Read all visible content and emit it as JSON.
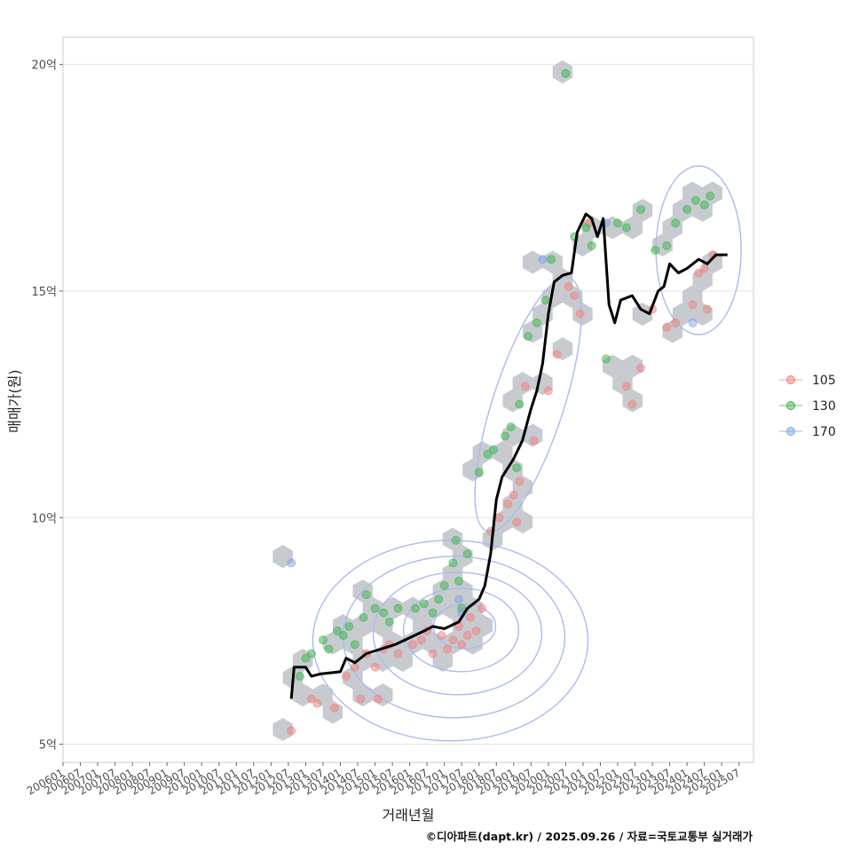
{
  "chart_data": {
    "type": "scatter",
    "xlabel": "거래년월",
    "ylabel": "매매가(원)",
    "caption": "©디아파트(dapt.kr) / 2025.09.26 / 자료=국토교통부 실거래가",
    "x_range": [
      "2006-01",
      "2025-12"
    ],
    "ylim": [
      4.6,
      20.6
    ],
    "y_ticks": [
      {
        "value": 5,
        "label": "5억"
      },
      {
        "value": 10,
        "label": "10억"
      },
      {
        "value": 15,
        "label": "15억"
      },
      {
        "value": 20,
        "label": "20억"
      }
    ],
    "x_ticks": [
      "200601",
      "200607",
      "200701",
      "200707",
      "200801",
      "200807",
      "200901",
      "200907",
      "201001",
      "201007",
      "201101",
      "201107",
      "201201",
      "201207",
      "201301",
      "201307",
      "201401",
      "201407",
      "201501",
      "201507",
      "201601",
      "201607",
      "201701",
      "201707",
      "201801",
      "201807",
      "201901",
      "201907",
      "202001",
      "202007",
      "202101",
      "202107",
      "202201",
      "202207",
      "202301",
      "202307",
      "202401",
      "202407",
      "202501",
      "202507"
    ],
    "legend": {
      "position": "right"
    },
    "grid": true,
    "colors": {
      "105": "#f08080",
      "130": "#3cb44b",
      "170": "#7fa3e6",
      "hex": "#b9bec4",
      "contour": "#aabbee",
      "trend": "#000000"
    },
    "series": [
      {
        "name": "105",
        "points": [
          [
            "2012-08",
            5.3
          ],
          [
            "2013-03",
            6.0
          ],
          [
            "2013-05",
            5.9
          ],
          [
            "2013-11",
            5.8
          ],
          [
            "2014-03",
            6.5
          ],
          [
            "2014-06",
            6.7
          ],
          [
            "2014-08",
            6.0
          ],
          [
            "2014-10",
            7.0
          ],
          [
            "2015-01",
            6.7
          ],
          [
            "2015-02",
            6.0
          ],
          [
            "2015-04",
            7.1
          ],
          [
            "2015-06",
            7.2
          ],
          [
            "2015-09",
            7.0
          ],
          [
            "2016-02",
            7.2
          ],
          [
            "2016-05",
            7.3
          ],
          [
            "2016-07",
            7.5
          ],
          [
            "2016-09",
            7.0
          ],
          [
            "2016-12",
            7.4
          ],
          [
            "2017-02",
            7.1
          ],
          [
            "2017-04",
            7.3
          ],
          [
            "2017-06",
            7.6
          ],
          [
            "2017-07",
            7.2
          ],
          [
            "2017-09",
            7.4
          ],
          [
            "2017-10",
            7.8
          ],
          [
            "2017-12",
            7.5
          ],
          [
            "2018-02",
            8.0
          ],
          [
            "2018-05",
            9.7
          ],
          [
            "2018-08",
            10.0
          ],
          [
            "2018-11",
            10.3
          ],
          [
            "2019-01",
            10.5
          ],
          [
            "2019-02",
            9.9
          ],
          [
            "2019-03",
            10.8
          ],
          [
            "2019-05",
            12.9
          ],
          [
            "2019-08",
            11.7
          ],
          [
            "2020-01",
            12.8
          ],
          [
            "2020-04",
            13.6
          ],
          [
            "2020-08",
            15.1
          ],
          [
            "2020-10",
            14.9
          ],
          [
            "2020-12",
            14.5
          ],
          [
            "2021-03",
            16.5
          ],
          [
            "2022-04",
            12.9
          ],
          [
            "2022-06",
            12.5
          ],
          [
            "2022-09",
            13.3
          ],
          [
            "2023-01",
            14.6
          ],
          [
            "2023-06",
            14.2
          ],
          [
            "2023-09",
            14.3
          ],
          [
            "2024-03",
            14.7
          ],
          [
            "2024-05",
            15.4
          ],
          [
            "2024-07",
            15.5
          ],
          [
            "2024-08",
            14.6
          ],
          [
            "2024-10",
            15.8
          ]
        ]
      },
      {
        "name": "130",
        "points": [
          [
            "2012-11",
            6.5
          ],
          [
            "2013-01",
            6.9
          ],
          [
            "2013-03",
            7.0
          ],
          [
            "2013-07",
            7.3
          ],
          [
            "2013-09",
            7.1
          ],
          [
            "2013-12",
            7.5
          ],
          [
            "2014-02",
            7.4
          ],
          [
            "2014-04",
            7.6
          ],
          [
            "2014-06",
            7.2
          ],
          [
            "2014-09",
            7.8
          ],
          [
            "2014-10",
            8.3
          ],
          [
            "2015-01",
            8.0
          ],
          [
            "2015-04",
            7.9
          ],
          [
            "2015-06",
            7.7
          ],
          [
            "2015-09",
            8.0
          ],
          [
            "2016-03",
            8.0
          ],
          [
            "2016-06",
            8.1
          ],
          [
            "2016-09",
            7.9
          ],
          [
            "2016-11",
            8.2
          ],
          [
            "2017-01",
            8.5
          ],
          [
            "2017-04",
            9.0
          ],
          [
            "2017-05",
            9.5
          ],
          [
            "2017-06",
            8.6
          ],
          [
            "2017-07",
            8.0
          ],
          [
            "2017-09",
            9.2
          ],
          [
            "2018-01",
            11.0
          ],
          [
            "2018-04",
            11.4
          ],
          [
            "2018-06",
            11.5
          ],
          [
            "2018-10",
            11.8
          ],
          [
            "2018-12",
            12.0
          ],
          [
            "2019-02",
            11.1
          ],
          [
            "2019-03",
            12.5
          ],
          [
            "2019-06",
            14.0
          ],
          [
            "2019-09",
            14.3
          ],
          [
            "2019-12",
            14.8
          ],
          [
            "2020-02",
            15.7
          ],
          [
            "2020-07",
            19.8
          ],
          [
            "2020-10",
            16.2
          ],
          [
            "2021-02",
            16.4
          ],
          [
            "2021-04",
            16.0
          ],
          [
            "2021-09",
            13.5
          ],
          [
            "2022-01",
            16.5
          ],
          [
            "2022-04",
            16.4
          ],
          [
            "2022-09",
            16.8
          ],
          [
            "2023-02",
            15.9
          ],
          [
            "2023-06",
            16.0
          ],
          [
            "2023-09",
            16.5
          ],
          [
            "2024-01",
            16.8
          ],
          [
            "2024-04",
            17.0
          ],
          [
            "2024-07",
            16.9
          ],
          [
            "2024-09",
            17.1
          ]
        ]
      },
      {
        "name": "170",
        "points": [
          [
            "2012-08",
            9.0
          ],
          [
            "2017-06",
            8.2
          ],
          [
            "2017-07",
            7.9
          ],
          [
            "2019-11",
            15.7
          ],
          [
            "2021-09",
            16.5
          ],
          [
            "2024-03",
            14.3
          ]
        ]
      }
    ],
    "trend": [
      [
        "2012-08",
        6.0
      ],
      [
        "2012-09",
        6.7
      ],
      [
        "2013-01",
        6.7
      ],
      [
        "2013-03",
        6.5
      ],
      [
        "2013-06",
        6.55
      ],
      [
        "2014-01",
        6.6
      ],
      [
        "2014-03",
        6.9
      ],
      [
        "2014-06",
        6.8
      ],
      [
        "2014-10",
        7.0
      ],
      [
        "2015-03",
        7.1
      ],
      [
        "2015-08",
        7.2
      ],
      [
        "2016-01",
        7.35
      ],
      [
        "2016-06",
        7.5
      ],
      [
        "2016-09",
        7.6
      ],
      [
        "2017-01",
        7.55
      ],
      [
        "2017-06",
        7.7
      ],
      [
        "2017-09",
        8.0
      ],
      [
        "2018-01",
        8.2
      ],
      [
        "2018-03",
        8.5
      ],
      [
        "2018-05",
        9.2
      ],
      [
        "2018-07",
        10.4
      ],
      [
        "2018-09",
        10.9
      ],
      [
        "2019-01",
        11.3
      ],
      [
        "2019-04",
        11.7
      ],
      [
        "2019-07",
        12.4
      ],
      [
        "2019-09",
        12.8
      ],
      [
        "2019-11",
        13.4
      ],
      [
        "2020-01",
        14.5
      ],
      [
        "2020-03",
        15.2
      ],
      [
        "2020-06",
        15.35
      ],
      [
        "2020-09",
        15.4
      ],
      [
        "2020-11",
        16.3
      ],
      [
        "2021-02",
        16.7
      ],
      [
        "2021-04",
        16.6
      ],
      [
        "2021-06",
        16.2
      ],
      [
        "2021-08",
        16.6
      ],
      [
        "2021-10",
        14.7
      ],
      [
        "2021-12",
        14.3
      ],
      [
        "2022-02",
        14.8
      ],
      [
        "2022-06",
        14.9
      ],
      [
        "2022-09",
        14.6
      ],
      [
        "2022-12",
        14.5
      ],
      [
        "2023-03",
        15.0
      ],
      [
        "2023-05",
        15.1
      ],
      [
        "2023-07",
        15.6
      ],
      [
        "2023-10",
        15.4
      ],
      [
        "2024-01",
        15.5
      ],
      [
        "2024-05",
        15.7
      ],
      [
        "2024-08",
        15.6
      ],
      [
        "2024-11",
        15.8
      ],
      [
        "2025-03",
        15.8
      ]
    ]
  }
}
